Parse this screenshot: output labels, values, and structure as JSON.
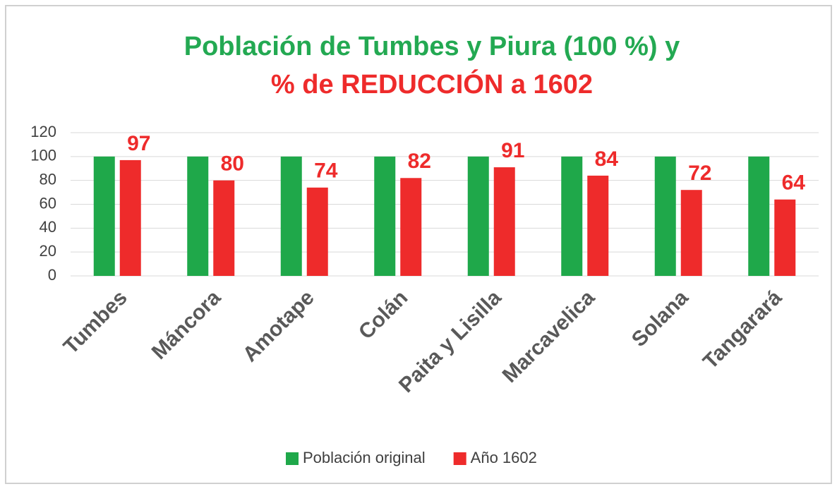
{
  "chart_data": {
    "type": "bar",
    "title": [
      "Población de Tumbes  y   Piura (100 %)  y",
      "% de REDUCCIÓN a 1602"
    ],
    "title_colors": [
      "#23a952",
      "#ee2b2b"
    ],
    "categories": [
      "Tumbes",
      "Máncora",
      "Amotape",
      "Colán",
      "Paita y Lisilla",
      "Marcavelica",
      "Solana",
      "Tangarará"
    ],
    "series": [
      {
        "name": "Población original",
        "color": "#1fa84a",
        "values": [
          100,
          100,
          100,
          100,
          100,
          100,
          100,
          100
        ],
        "data_labels": false
      },
      {
        "name": "Año 1602",
        "color": "#ee2b2b",
        "values": [
          97,
          80,
          74,
          82,
          91,
          84,
          72,
          64
        ],
        "data_labels": true
      }
    ],
    "ylim": [
      0,
      120
    ],
    "yticks": [
      0,
      20,
      40,
      60,
      80,
      100,
      120
    ],
    "grid": true,
    "legend": "bottom"
  }
}
